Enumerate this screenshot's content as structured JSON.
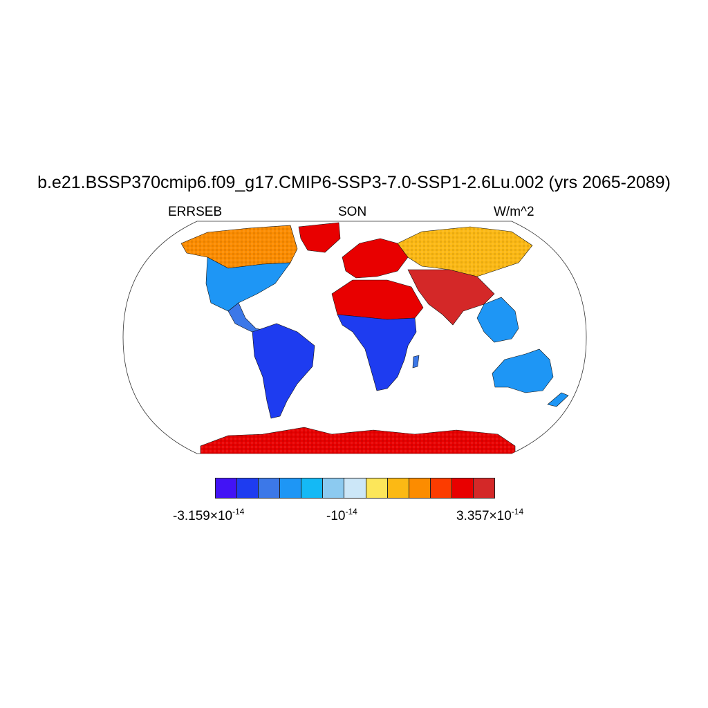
{
  "title": "b.e21.BSSP370cmip6.f09_g17.CMIP6-SSP3-7.0-SSP1-2.6Lu.002 (yrs 2065-2089)",
  "left_label": "ERRSEB",
  "center_label": "SON",
  "right_label": "W/m^2",
  "colorbar": {
    "colors": [
      "#4213f5",
      "#1e3cf0",
      "#3c78e8",
      "#1e96f5",
      "#14b9f5",
      "#8ccaf0",
      "#cce7f8",
      "#fce65a",
      "#fcb914",
      "#fc8c00",
      "#fc3c00",
      "#e80000",
      "#d42828"
    ],
    "min_label": {
      "mantissa": "-3.159×10",
      "exponent": "-14"
    },
    "mid_label": {
      "mantissa": "-10",
      "exponent": "-14"
    },
    "max_label": {
      "mantissa": "3.357×10",
      "exponent": "-14"
    }
  },
  "map": {
    "projection": "robinson",
    "regions": [
      {
        "name": "north-america-north",
        "color": "#fc8c00"
      },
      {
        "name": "north-america-south",
        "color": "#1e96f5"
      },
      {
        "name": "central-america",
        "color": "#3c78e8"
      },
      {
        "name": "south-america",
        "color": "#1e3cf0"
      },
      {
        "name": "greenland",
        "color": "#e80000"
      },
      {
        "name": "europe",
        "color": "#e80000"
      },
      {
        "name": "northern-asia",
        "color": "#fcb914"
      },
      {
        "name": "middle-east-south-asia",
        "color": "#d42828"
      },
      {
        "name": "southeast-asia",
        "color": "#1e96f5"
      },
      {
        "name": "north-africa",
        "color": "#e80000"
      },
      {
        "name": "central-southern-africa",
        "color": "#1e3cf0"
      },
      {
        "name": "madagascar",
        "color": "#3c78e8"
      },
      {
        "name": "australia",
        "color": "#1e96f5"
      },
      {
        "name": "new-zealand",
        "color": "#1e96f5"
      },
      {
        "name": "antarctica",
        "color": "#e80000"
      }
    ]
  }
}
